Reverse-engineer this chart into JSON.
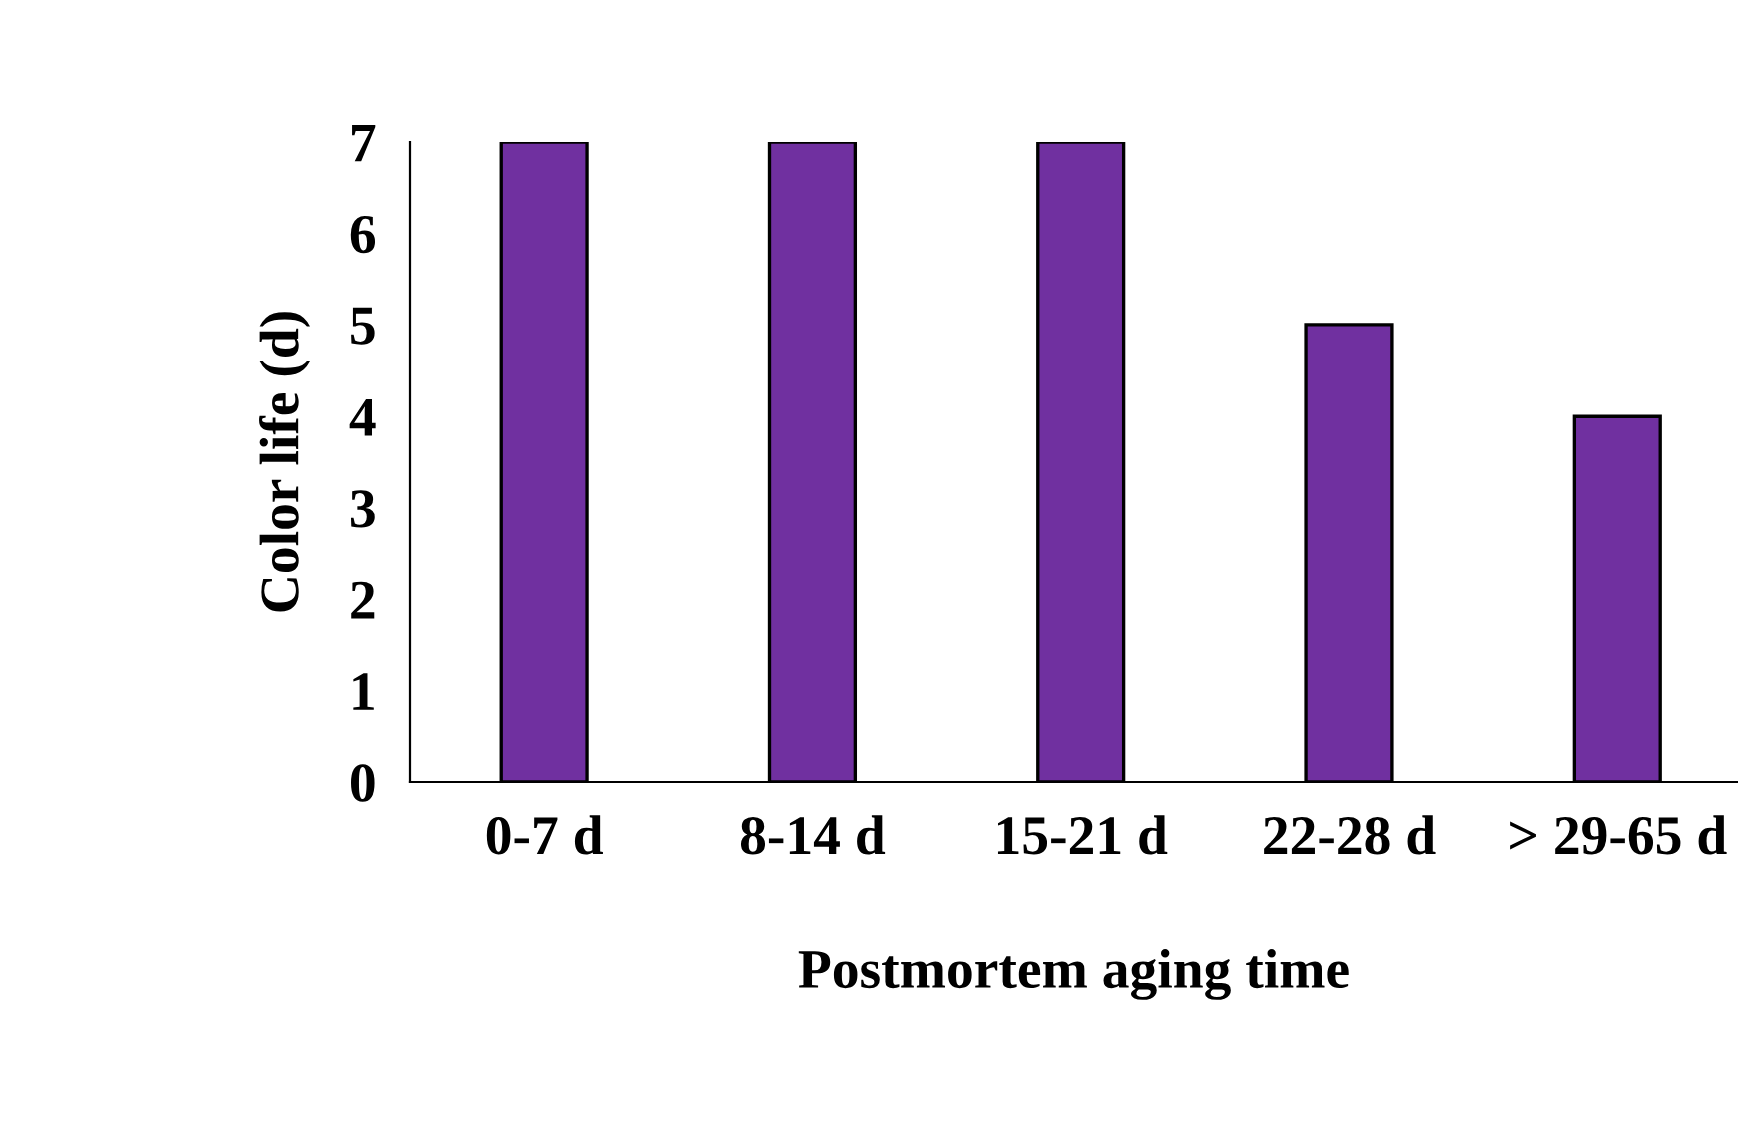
{
  "chart_data": {
    "type": "bar",
    "categories": [
      "0-7 d",
      "8-14 d",
      "15-21 d",
      "22-28 d",
      "> 29-65 d"
    ],
    "values": [
      7,
      7,
      7,
      5,
      4
    ],
    "color": "#7030a0",
    "xlabel": "Postmortem aging time",
    "ylabel": "Color life (d)",
    "ylim": [
      0,
      7
    ],
    "yticks": [
      0,
      1,
      2,
      3,
      4,
      5,
      6,
      7
    ],
    "grid": false,
    "legend": false
  }
}
